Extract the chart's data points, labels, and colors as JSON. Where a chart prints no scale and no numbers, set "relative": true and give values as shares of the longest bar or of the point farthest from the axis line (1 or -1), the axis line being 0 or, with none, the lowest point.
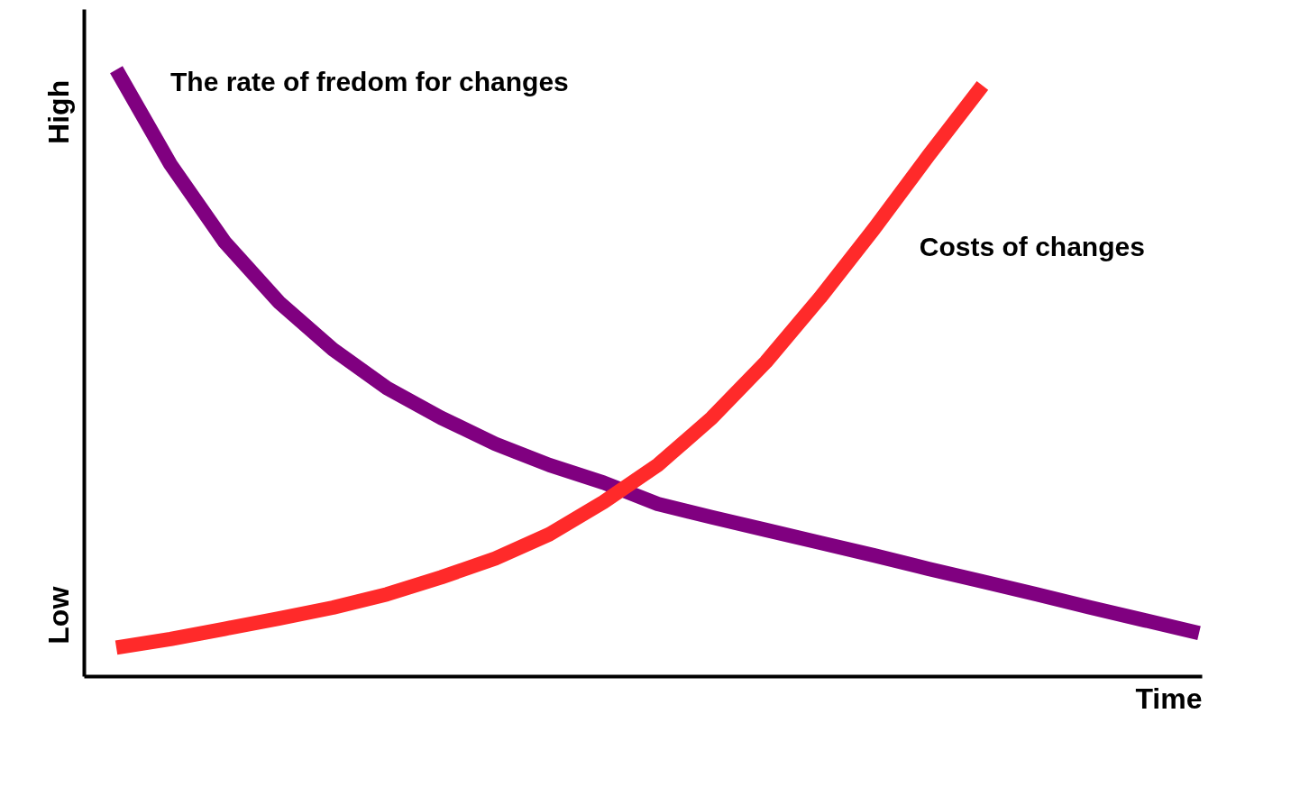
{
  "chart_data": {
    "type": "line",
    "relative": true,
    "xlabel": "Time",
    "categories": [
      null,
      null,
      null,
      null,
      null,
      null,
      null,
      null,
      null,
      null,
      null,
      null,
      null,
      null,
      null,
      null,
      null,
      null,
      null,
      null,
      null
    ],
    "series": [
      {
        "name": "The rate of fredom for changes",
        "color": "#800080",
        "values": [
          1,
          0.844,
          0.716,
          0.617,
          0.539,
          0.475,
          0.426,
          0.383,
          0.348,
          0.319,
          0.284,
          0.262,
          0.241,
          0.22,
          0.199,
          0.177,
          0.156,
          0.135,
          0.113,
          0.092,
          0.071
        ]
      },
      {
        "name": "Costs of changes",
        "color": "#ff2a2a",
        "values": [
          0.047,
          0.061,
          0.078,
          0.095,
          0.113,
          0.135,
          0.163,
          0.194,
          0.234,
          0.287,
          0.348,
          0.426,
          0.518,
          0.624,
          0.738,
          0.858,
          0.974,
          null,
          null,
          null,
          null
        ]
      }
    ],
    "annotations": [
      "High",
      "Low"
    ],
    "legend": false,
    "grid": false,
    "marker": "none",
    "line_style": "solid"
  }
}
